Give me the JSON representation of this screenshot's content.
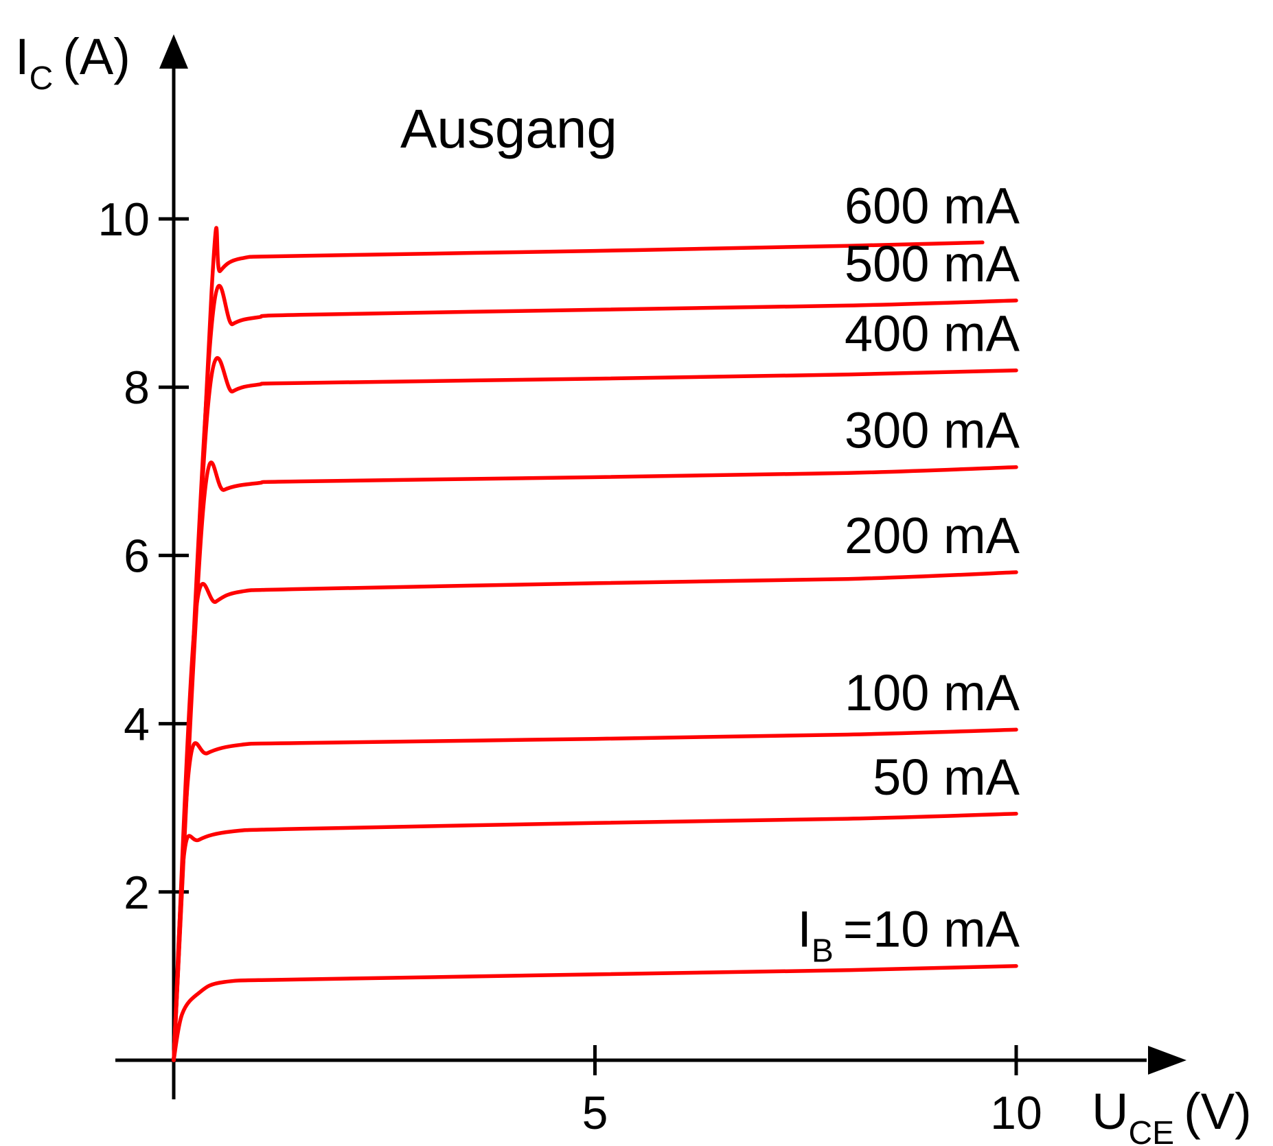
{
  "chart_data": {
    "type": "line",
    "title": "Ausgang",
    "xlabel": {
      "main": "U",
      "sub": "CE",
      "unit": "(V)"
    },
    "ylabel": {
      "main": "I",
      "sub": "C",
      "unit": "(A)"
    },
    "xlim": [
      0,
      11.7
    ],
    "ylim": [
      0,
      11.0
    ],
    "xticks": [
      5,
      10
    ],
    "yticks": [
      2,
      4,
      6,
      8,
      10
    ],
    "grid": false,
    "line_color": "#ff0000",
    "series": [
      {
        "name": "=10 mA",
        "prefix": "I",
        "prefix_sub": "B",
        "x": [
          0,
          0.1,
          0.3,
          0.6,
          1.5,
          5,
          8,
          10
        ],
        "y": [
          0,
          0.55,
          0.8,
          0.93,
          0.96,
          1.02,
          1.07,
          1.12
        ]
      },
      {
        "name": "50 mA",
        "x": [
          0,
          0.12,
          0.3,
          0.7,
          1.5,
          5,
          8,
          10
        ],
        "y": [
          0,
          2.42,
          2.62,
          2.72,
          2.75,
          2.82,
          2.87,
          2.93
        ]
      },
      {
        "name": "100 mA",
        "x": [
          0,
          0.18,
          0.4,
          0.8,
          1.5,
          5,
          8,
          10
        ],
        "y": [
          0,
          3.45,
          3.65,
          3.75,
          3.77,
          3.82,
          3.87,
          3.93
        ]
      },
      {
        "name": "200 mA",
        "x": [
          0,
          0.25,
          0.5,
          0.8,
          1.5,
          5,
          8,
          10
        ],
        "y": [
          0,
          5.2,
          5.45,
          5.57,
          5.6,
          5.67,
          5.72,
          5.8
        ]
      },
      {
        "name": "300 mA",
        "x": [
          0,
          0.35,
          0.6,
          1.0,
          1.5,
          5,
          8,
          10
        ],
        "y": [
          0,
          6.55,
          6.78,
          6.86,
          6.88,
          6.93,
          6.98,
          7.05
        ]
      },
      {
        "name": "400 mA",
        "x": [
          0,
          0.4,
          0.7,
          1.0,
          1.5,
          5,
          8,
          10
        ],
        "y": [
          0,
          7.7,
          7.95,
          8.03,
          8.05,
          8.1,
          8.15,
          8.2
        ]
      },
      {
        "name": "500 mA",
        "x": [
          0,
          0.43,
          0.7,
          1.0,
          1.5,
          5,
          8,
          10
        ],
        "y": [
          0,
          8.5,
          8.75,
          8.83,
          8.86,
          8.92,
          8.97,
          9.03
        ]
      },
      {
        "name": "600 mA",
        "x": [
          0,
          0.45,
          0.55,
          0.8,
          1.5,
          5,
          8,
          9.6
        ],
        "y": [
          0,
          9.15,
          9.38,
          9.53,
          9.56,
          9.62,
          9.68,
          9.72
        ]
      }
    ]
  }
}
